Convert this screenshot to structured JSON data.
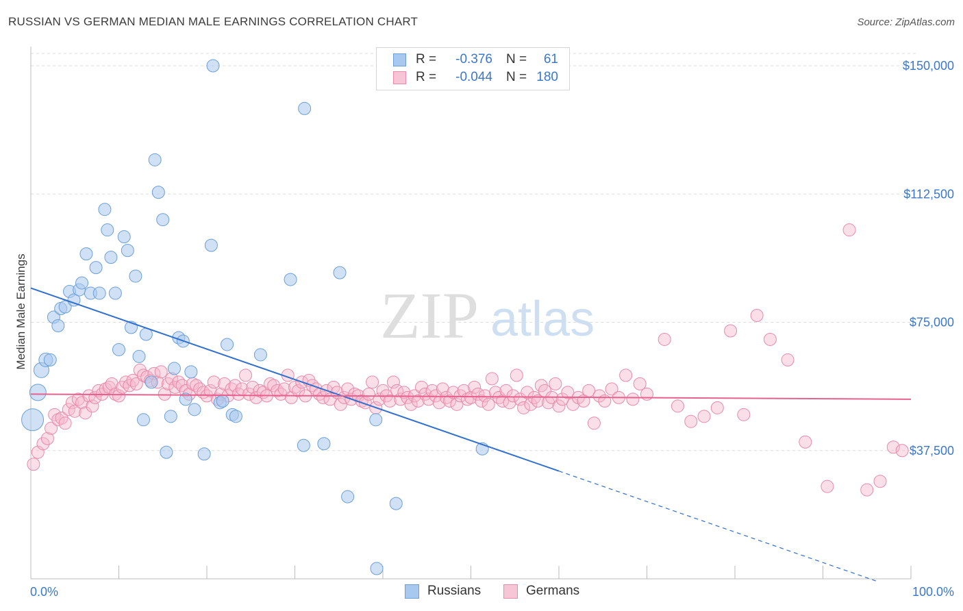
{
  "title": "RUSSIAN VS GERMAN MEDIAN MALE EARNINGS CORRELATION CHART",
  "source": "Source: ZipAtlas.com",
  "watermark": {
    "zip": "ZIP",
    "atlas": "atlas"
  },
  "colors": {
    "blue_fill": "#a9c8ef",
    "blue_stroke": "#6a9fd8",
    "blue_line": "#2f6fd0",
    "pink_fill": "#f6b8cc",
    "pink_stroke": "#e88aa8",
    "pink_line": "#e8608e",
    "tick_text": "#3b77c9",
    "grid": "#dcdcdc"
  },
  "legend": {
    "rows": [
      {
        "series": "Russians",
        "r_label": "R =",
        "r_value": "-0.376",
        "n_label": "N =",
        "n_value": "61"
      },
      {
        "series": "Germans",
        "r_label": "R =",
        "r_value": "-0.044",
        "n_label": "N =",
        "n_value": "180"
      }
    ]
  },
  "bottom_legend": {
    "russians": "Russians",
    "germans": "Germans"
  },
  "chart_data": {
    "type": "scatter",
    "ylabel": "Median Male Earnings",
    "xlabel": "",
    "x_tick_labels": [
      "0.0%",
      "100.0%"
    ],
    "y_tick_labels": [
      "$37,500",
      "$75,000",
      "$112,500",
      "$150,000"
    ],
    "y_ticks": [
      37500,
      75000,
      112500,
      150000
    ],
    "xlim": [
      0,
      100
    ],
    "ylim": [
      0,
      155000
    ],
    "grid": true,
    "legend_position": "top-center",
    "series": [
      {
        "name": "Russians",
        "trend": {
          "x0": 0,
          "y0": 85000,
          "x1": 60,
          "y1": 31500,
          "dashed_to_x": 96
        },
        "points": [
          [
            0.2,
            46500,
            16
          ],
          [
            0.8,
            54500,
            12
          ],
          [
            1.2,
            61000,
            11
          ],
          [
            1.7,
            64000,
            10
          ],
          [
            2.2,
            64000,
            9
          ],
          [
            2.6,
            76500,
            9
          ],
          [
            3.1,
            74000,
            9
          ],
          [
            3.4,
            79000,
            9
          ],
          [
            3.9,
            79500,
            9
          ],
          [
            4.4,
            84000,
            9
          ],
          [
            4.9,
            81500,
            9
          ],
          [
            5.5,
            84500,
            9
          ],
          [
            5.8,
            86500,
            9
          ],
          [
            6.3,
            95000,
            9
          ],
          [
            6.8,
            83500,
            9
          ],
          [
            7.4,
            91000,
            9
          ],
          [
            7.8,
            83500,
            9
          ],
          [
            8.4,
            108000,
            9
          ],
          [
            8.7,
            102000,
            9
          ],
          [
            9.1,
            94000,
            9
          ],
          [
            9.6,
            83500,
            9
          ],
          [
            10.0,
            67000,
            9
          ],
          [
            10.6,
            100000,
            9
          ],
          [
            11.0,
            96000,
            9
          ],
          [
            11.4,
            73500,
            9
          ],
          [
            11.9,
            88500,
            9
          ],
          [
            12.3,
            65000,
            9
          ],
          [
            12.8,
            46500,
            9
          ],
          [
            13.1,
            71500,
            9
          ],
          [
            13.7,
            57500,
            9
          ],
          [
            14.1,
            122500,
            9
          ],
          [
            14.5,
            113000,
            9
          ],
          [
            15.0,
            105000,
            9
          ],
          [
            15.4,
            37000,
            9
          ],
          [
            15.9,
            47500,
            9
          ],
          [
            16.3,
            61500,
            9
          ],
          [
            16.8,
            70500,
            9
          ],
          [
            17.3,
            69500,
            9
          ],
          [
            17.6,
            52500,
            9
          ],
          [
            18.2,
            60500,
            9
          ],
          [
            18.6,
            49500,
            9
          ],
          [
            19.7,
            36500,
            9
          ],
          [
            20.5,
            97500,
            9
          ],
          [
            20.7,
            150000,
            9
          ],
          [
            21.5,
            51500,
            9
          ],
          [
            21.8,
            52000,
            9
          ],
          [
            22.3,
            68500,
            9
          ],
          [
            22.9,
            48000,
            9
          ],
          [
            23.3,
            47500,
            9
          ],
          [
            26.1,
            65500,
            9
          ],
          [
            29.5,
            87500,
            9
          ],
          [
            31.0,
            39000,
            9
          ],
          [
            31.1,
            137500,
            9
          ],
          [
            33.3,
            39500,
            9
          ],
          [
            35.1,
            89500,
            9
          ],
          [
            36.0,
            24000,
            9
          ],
          [
            39.2,
            46500,
            9
          ],
          [
            39.3,
            3000,
            9
          ],
          [
            41.5,
            22000,
            9
          ],
          [
            51.3,
            38000,
            9
          ],
          [
            0.0,
            56500,
            0
          ]
        ]
      },
      {
        "name": "Germans",
        "trend": {
          "x0": 0,
          "y0": 54000,
          "x1": 100,
          "y1": 52500
        },
        "points": [
          [
            0.3,
            33500
          ],
          [
            0.8,
            37000
          ],
          [
            1.4,
            39500
          ],
          [
            1.9,
            41000
          ],
          [
            2.3,
            44000
          ],
          [
            2.7,
            48000
          ],
          [
            3.1,
            46500
          ],
          [
            3.5,
            47000
          ],
          [
            3.9,
            45500
          ],
          [
            4.3,
            49500
          ],
          [
            4.7,
            51500
          ],
          [
            5.0,
            49000
          ],
          [
            5.4,
            52500
          ],
          [
            5.8,
            51500
          ],
          [
            6.2,
            48500
          ],
          [
            6.6,
            53500
          ],
          [
            7.0,
            50500
          ],
          [
            7.3,
            53000
          ],
          [
            7.7,
            55000
          ],
          [
            8.1,
            54000
          ],
          [
            8.5,
            55500
          ],
          [
            8.9,
            56000
          ],
          [
            9.2,
            57000
          ],
          [
            9.6,
            54000
          ],
          [
            10.0,
            53500
          ],
          [
            10.4,
            56000
          ],
          [
            10.8,
            57500
          ],
          [
            11.2,
            56500
          ],
          [
            11.6,
            58000
          ],
          [
            12.0,
            57000
          ],
          [
            12.4,
            61000
          ],
          [
            12.8,
            59500
          ],
          [
            13.2,
            59000
          ],
          [
            13.6,
            58000
          ],
          [
            14.0,
            60000
          ],
          [
            14.4,
            57500
          ],
          [
            14.8,
            60500
          ],
          [
            15.2,
            54000
          ],
          [
            15.6,
            57000
          ],
          [
            16.0,
            58500
          ],
          [
            16.4,
            56000
          ],
          [
            16.8,
            57500
          ],
          [
            17.2,
            56500
          ],
          [
            17.6,
            55000
          ],
          [
            18.0,
            54000
          ],
          [
            18.4,
            57000
          ],
          [
            18.8,
            56500
          ],
          [
            19.2,
            55500
          ],
          [
            19.6,
            54500
          ],
          [
            20.0,
            53500
          ],
          [
            20.4,
            55000
          ],
          [
            20.8,
            57500
          ],
          [
            21.2,
            52500
          ],
          [
            21.6,
            54000
          ],
          [
            22.0,
            57000
          ],
          [
            22.4,
            53500
          ],
          [
            22.8,
            55500
          ],
          [
            23.2,
            56500
          ],
          [
            23.6,
            54000
          ],
          [
            24.0,
            55500
          ],
          [
            24.4,
            59500
          ],
          [
            24.8,
            54000
          ],
          [
            25.2,
            56000
          ],
          [
            25.6,
            53000
          ],
          [
            26.0,
            55000
          ],
          [
            26.4,
            54500
          ],
          [
            26.8,
            53500
          ],
          [
            27.2,
            57000
          ],
          [
            27.6,
            56500
          ],
          [
            28.0,
            55000
          ],
          [
            28.4,
            54000
          ],
          [
            28.8,
            55500
          ],
          [
            29.2,
            59500
          ],
          [
            29.6,
            53000
          ],
          [
            30.0,
            56000
          ],
          [
            30.4,
            55000
          ],
          [
            30.8,
            57500
          ],
          [
            31.2,
            53500
          ],
          [
            31.6,
            58000
          ],
          [
            32.0,
            56500
          ],
          [
            32.4,
            55500
          ],
          [
            32.8,
            54000
          ],
          [
            33.2,
            53000
          ],
          [
            33.6,
            55000
          ],
          [
            34.0,
            52500
          ],
          [
            34.4,
            56000
          ],
          [
            34.8,
            54500
          ],
          [
            35.2,
            51000
          ],
          [
            35.6,
            53000
          ],
          [
            36.0,
            55500
          ],
          [
            36.4,
            52500
          ],
          [
            36.8,
            54000
          ],
          [
            37.2,
            53500
          ],
          [
            37.6,
            52000
          ],
          [
            38.0,
            51500
          ],
          [
            38.4,
            54000
          ],
          [
            38.8,
            57500
          ],
          [
            39.2,
            50000
          ],
          [
            39.6,
            52500
          ],
          [
            40.0,
            55000
          ],
          [
            40.4,
            53500
          ],
          [
            40.8,
            52000
          ],
          [
            41.2,
            57500
          ],
          [
            41.6,
            55000
          ],
          [
            42.0,
            52500
          ],
          [
            42.4,
            54500
          ],
          [
            42.8,
            53000
          ],
          [
            43.2,
            51000
          ],
          [
            43.6,
            53500
          ],
          [
            44.0,
            52000
          ],
          [
            44.4,
            56000
          ],
          [
            44.8,
            54000
          ],
          [
            45.2,
            52500
          ],
          [
            45.6,
            55000
          ],
          [
            46.0,
            53500
          ],
          [
            46.4,
            51500
          ],
          [
            46.8,
            55500
          ],
          [
            47.2,
            53000
          ],
          [
            47.6,
            52000
          ],
          [
            48.0,
            54500
          ],
          [
            48.4,
            51000
          ],
          [
            48.8,
            53500
          ],
          [
            49.2,
            55000
          ],
          [
            49.6,
            52500
          ],
          [
            50.0,
            53000
          ],
          [
            50.4,
            56000
          ],
          [
            50.8,
            54000
          ],
          [
            51.2,
            52000
          ],
          [
            51.6,
            53500
          ],
          [
            52.0,
            51000
          ],
          [
            52.4,
            58500
          ],
          [
            52.8,
            54500
          ],
          [
            53.2,
            53000
          ],
          [
            53.6,
            52000
          ],
          [
            54.0,
            55000
          ],
          [
            54.4,
            51500
          ],
          [
            54.8,
            53500
          ],
          [
            55.2,
            59500
          ],
          [
            55.6,
            52500
          ],
          [
            56.0,
            50000
          ],
          [
            56.4,
            54500
          ],
          [
            56.8,
            51000
          ],
          [
            57.2,
            53000
          ],
          [
            57.6,
            52000
          ],
          [
            58.0,
            56500
          ],
          [
            58.4,
            55000
          ],
          [
            58.8,
            51500
          ],
          [
            59.2,
            53000
          ],
          [
            59.6,
            57000
          ],
          [
            60.0,
            50500
          ],
          [
            60.4,
            52500
          ],
          [
            61.0,
            54500
          ],
          [
            61.6,
            51000
          ],
          [
            62.2,
            53000
          ],
          [
            62.8,
            52000
          ],
          [
            63.4,
            55000
          ],
          [
            64.0,
            45500
          ],
          [
            64.6,
            53500
          ],
          [
            65.2,
            52000
          ],
          [
            66.0,
            55500
          ],
          [
            66.8,
            53000
          ],
          [
            67.6,
            59500
          ],
          [
            68.4,
            52500
          ],
          [
            69.2,
            57000
          ],
          [
            70.0,
            54000
          ],
          [
            72.0,
            70000
          ],
          [
            73.5,
            50500
          ],
          [
            75.0,
            46000
          ],
          [
            76.5,
            47500
          ],
          [
            78.0,
            50000
          ],
          [
            79.5,
            72500
          ],
          [
            81.0,
            48000
          ],
          [
            82.5,
            77000
          ],
          [
            84.0,
            70000
          ],
          [
            86.0,
            64000
          ],
          [
            88.0,
            40000
          ],
          [
            90.5,
            27000
          ],
          [
            93.0,
            102000
          ],
          [
            95.0,
            26000
          ],
          [
            96.5,
            28500
          ],
          [
            98.0,
            38500
          ],
          [
            99.0,
            37500
          ]
        ]
      }
    ]
  }
}
